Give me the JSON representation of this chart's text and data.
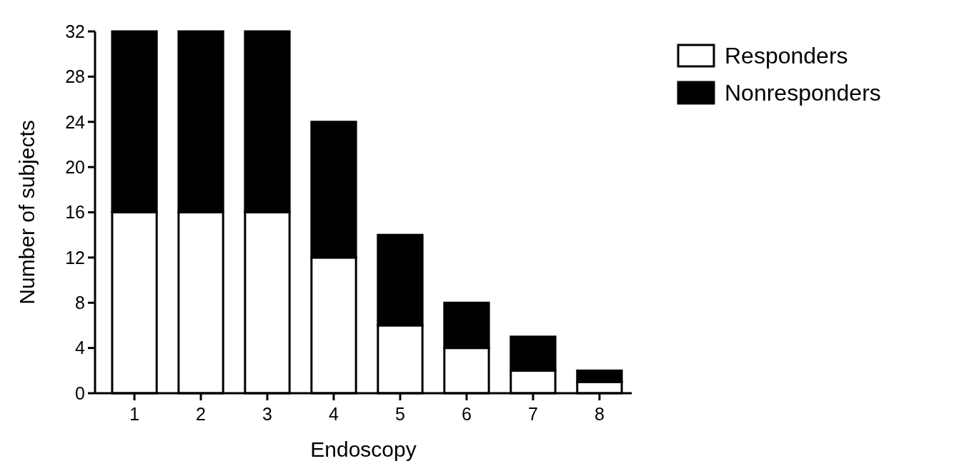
{
  "chart_data": {
    "type": "bar",
    "xlabel": "Endoscopy",
    "ylabel": "Number of subjects",
    "categories": [
      "1",
      "2",
      "3",
      "4",
      "5",
      "6",
      "7",
      "8"
    ],
    "stacked": true,
    "legend": "top right",
    "ylim": [
      0,
      32
    ],
    "yticks": [
      0,
      4,
      8,
      12,
      16,
      20,
      24,
      28,
      32
    ],
    "grid": false,
    "series": [
      {
        "name": "Responders",
        "color": "#ffffff",
        "values": [
          16,
          16,
          16,
          12,
          6,
          4,
          2,
          1
        ]
      },
      {
        "name": "Nonresponders",
        "color": "#000000",
        "values": [
          16,
          16,
          16,
          12,
          8,
          4,
          3,
          1
        ]
      }
    ]
  }
}
